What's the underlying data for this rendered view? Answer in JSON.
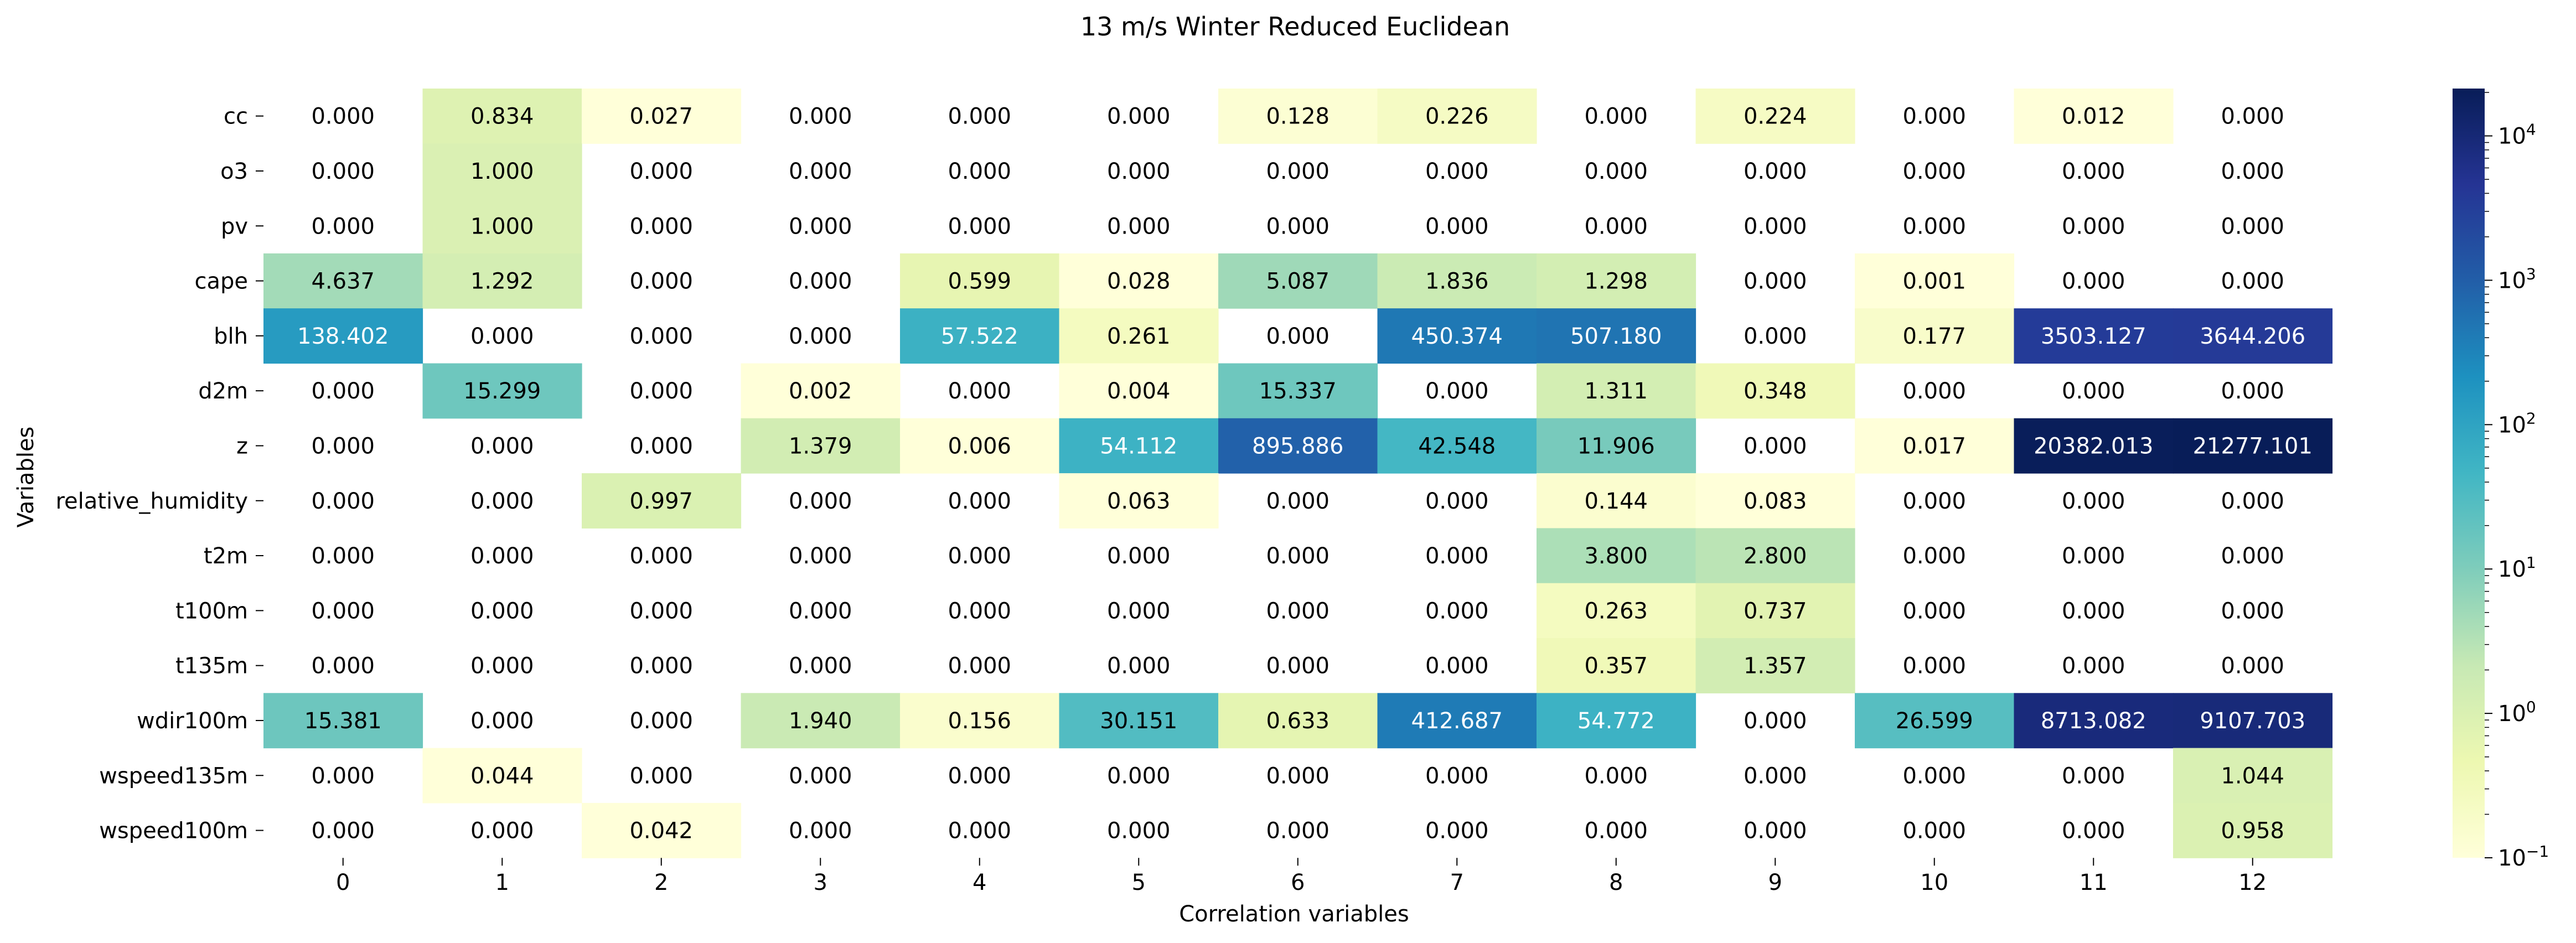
{
  "chart_data": {
    "type": "heatmap",
    "title": "13 m/s Winter Reduced Euclidean",
    "xlabel": "Correlation variables",
    "ylabel": "Variables",
    "x_categories": [
      "0",
      "1",
      "2",
      "3",
      "4",
      "5",
      "6",
      "7",
      "8",
      "9",
      "10",
      "11",
      "12"
    ],
    "y_categories": [
      "cc",
      "o3",
      "pv",
      "cape",
      "blh",
      "d2m",
      "z",
      "relative_humidity",
      "t2m",
      "t100m",
      "t135m",
      "wdir100m",
      "wspeed135m",
      "wspeed100m"
    ],
    "values": [
      [
        0.0,
        0.834,
        0.027,
        0.0,
        0.0,
        0.0,
        0.128,
        0.226,
        0.0,
        0.224,
        0.0,
        0.012,
        0.0
      ],
      [
        0.0,
        1.0,
        0.0,
        0.0,
        0.0,
        0.0,
        0.0,
        0.0,
        0.0,
        0.0,
        0.0,
        0.0,
        0.0
      ],
      [
        0.0,
        1.0,
        0.0,
        0.0,
        0.0,
        0.0,
        0.0,
        0.0,
        0.0,
        0.0,
        0.0,
        0.0,
        0.0
      ],
      [
        4.637,
        1.292,
        0.0,
        0.0,
        0.599,
        0.028,
        5.087,
        1.836,
        1.298,
        0.0,
        0.001,
        0.0,
        0.0
      ],
      [
        138.402,
        0.0,
        0.0,
        0.0,
        57.522,
        0.261,
        0.0,
        450.374,
        507.18,
        0.0,
        0.177,
        3503.127,
        3644.206
      ],
      [
        0.0,
        15.299,
        0.0,
        0.002,
        0.0,
        0.004,
        15.337,
        0.0,
        1.311,
        0.348,
        0.0,
        0.0,
        0.0
      ],
      [
        0.0,
        0.0,
        0.0,
        1.379,
        0.006,
        54.112,
        895.886,
        42.548,
        11.906,
        0.0,
        0.017,
        20382.013,
        21277.101
      ],
      [
        0.0,
        0.0,
        0.997,
        0.0,
        0.0,
        0.063,
        0.0,
        0.0,
        0.144,
        0.083,
        0.0,
        0.0,
        0.0
      ],
      [
        0.0,
        0.0,
        0.0,
        0.0,
        0.0,
        0.0,
        0.0,
        0.0,
        3.8,
        2.8,
        0.0,
        0.0,
        0.0
      ],
      [
        0.0,
        0.0,
        0.0,
        0.0,
        0.0,
        0.0,
        0.0,
        0.0,
        0.263,
        0.737,
        0.0,
        0.0,
        0.0
      ],
      [
        0.0,
        0.0,
        0.0,
        0.0,
        0.0,
        0.0,
        0.0,
        0.0,
        0.357,
        1.357,
        0.0,
        0.0,
        0.0
      ],
      [
        15.381,
        0.0,
        0.0,
        1.94,
        0.156,
        30.151,
        0.633,
        412.687,
        54.772,
        0.0,
        26.599,
        8713.082,
        9107.703
      ],
      [
        0.0,
        0.044,
        0.0,
        0.0,
        0.0,
        0.0,
        0.0,
        0.0,
        0.0,
        0.0,
        0.0,
        0.0,
        1.044
      ],
      [
        0.0,
        0.0,
        0.042,
        0.0,
        0.0,
        0.0,
        0.0,
        0.0,
        0.0,
        0.0,
        0.0,
        0.0,
        0.958
      ]
    ],
    "value_format": "3 decimals",
    "zero_cells": "blank (masked under log scale)",
    "colormap": "YlGnBu",
    "color_scale": "log",
    "colorbar_range": [
      0.1,
      21277.101
    ],
    "colorbar_ticks": [
      {
        "base": "10",
        "exp": "4",
        "value": 10000
      },
      {
        "base": "10",
        "exp": "3",
        "value": 1000
      },
      {
        "base": "10",
        "exp": "2",
        "value": 100
      },
      {
        "base": "10",
        "exp": "1",
        "value": 10
      },
      {
        "base": "10",
        "exp": "0",
        "value": 1
      },
      {
        "base": "10",
        "exp": "−1",
        "value": 0.1
      }
    ],
    "colorbar_position": "right",
    "grid": false
  }
}
